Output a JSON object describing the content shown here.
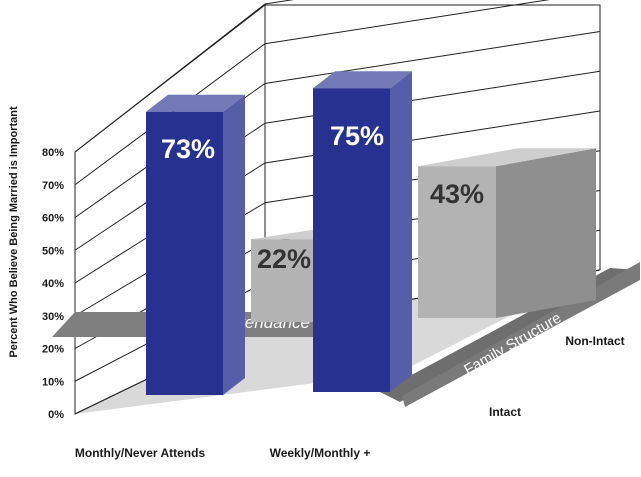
{
  "chart_data": {
    "type": "bar",
    "ylabel": "Percent Who Believe Being Married is Important",
    "yticks": [
      "0%",
      "10%",
      "20%",
      "30%",
      "40%",
      "50%",
      "60%",
      "70%",
      "80%"
    ],
    "ylim": [
      0,
      80
    ],
    "x_axis_title": "Religious Attendance",
    "depth_axis_title": "Family Structure",
    "categories": [
      "Monthly/Never Attends",
      "Weekly/Monthly +"
    ],
    "depth_categories": [
      "Intact",
      "Non-Intact"
    ],
    "series": [
      {
        "name": "Intact",
        "values": [
          73,
          75
        ],
        "labels": [
          "73%",
          "75%"
        ],
        "color": "#27318f"
      },
      {
        "name": "Non-Intact",
        "values": [
          22,
          43
        ],
        "labels": [
          "22%",
          "43%"
        ],
        "color": "#b3b3b3"
      }
    ],
    "grid": true
  }
}
